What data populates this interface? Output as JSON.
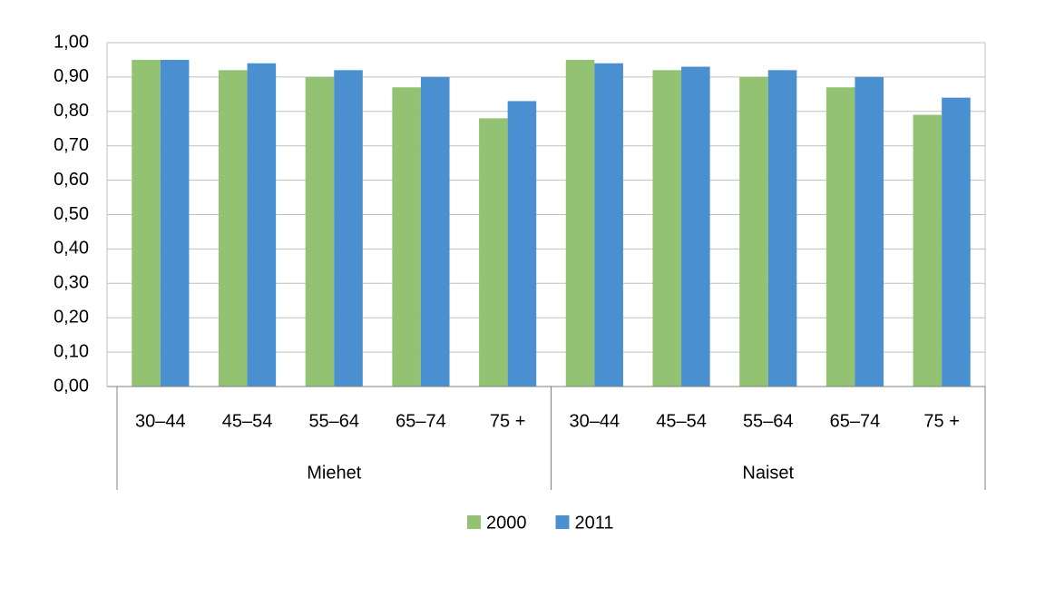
{
  "chart_data": {
    "type": "bar",
    "category_groups": [
      {
        "name": "Miehet",
        "categories": [
          "30–44",
          "45–54",
          "55–64",
          "65–74",
          "75 +"
        ]
      },
      {
        "name": "Naiset",
        "categories": [
          "30–44",
          "45–54",
          "55–64",
          "65–74",
          "75 +"
        ]
      }
    ],
    "series": [
      {
        "name": "2000",
        "color": "#93c272",
        "values": [
          0.95,
          0.92,
          0.9,
          0.87,
          0.78,
          0.95,
          0.92,
          0.9,
          0.87,
          0.79
        ]
      },
      {
        "name": "2011",
        "color": "#4a8fd0",
        "values": [
          0.95,
          0.94,
          0.92,
          0.9,
          0.83,
          0.94,
          0.93,
          0.92,
          0.9,
          0.84
        ]
      }
    ],
    "ylim": [
      0,
      1
    ],
    "yticks": [
      {
        "value": 0,
        "label": "0,00"
      },
      {
        "value": 0.1,
        "label": "0,10"
      },
      {
        "value": 0.2,
        "label": "0,20"
      },
      {
        "value": 0.3,
        "label": "0,30"
      },
      {
        "value": 0.4,
        "label": "0,40"
      },
      {
        "value": 0.5,
        "label": "0,50"
      },
      {
        "value": 0.6,
        "label": "0,60"
      },
      {
        "value": 0.7,
        "label": "0,70"
      },
      {
        "value": 0.8,
        "label": "0,80"
      },
      {
        "value": 0.9,
        "label": "0,90"
      },
      {
        "value": 1,
        "label": "1,00"
      }
    ],
    "grid": true,
    "legend": "bottom"
  }
}
